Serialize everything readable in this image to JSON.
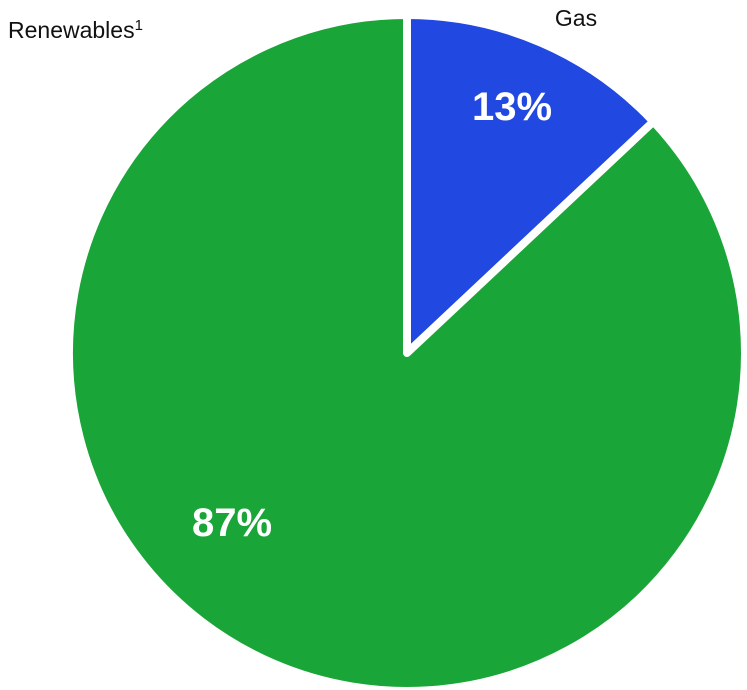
{
  "chart_data": {
    "type": "pie",
    "title": "",
    "slices": [
      {
        "label": "Gas",
        "label_superscript": "",
        "value": 13,
        "value_label": "13%",
        "color": "#2148e0"
      },
      {
        "label": "Renewables",
        "label_superscript": "1",
        "value": 87,
        "value_label": "87%",
        "color": "#19a537"
      }
    ],
    "start_angle_deg": 0,
    "direction": "clockwise",
    "separator_color": "#ffffff"
  }
}
